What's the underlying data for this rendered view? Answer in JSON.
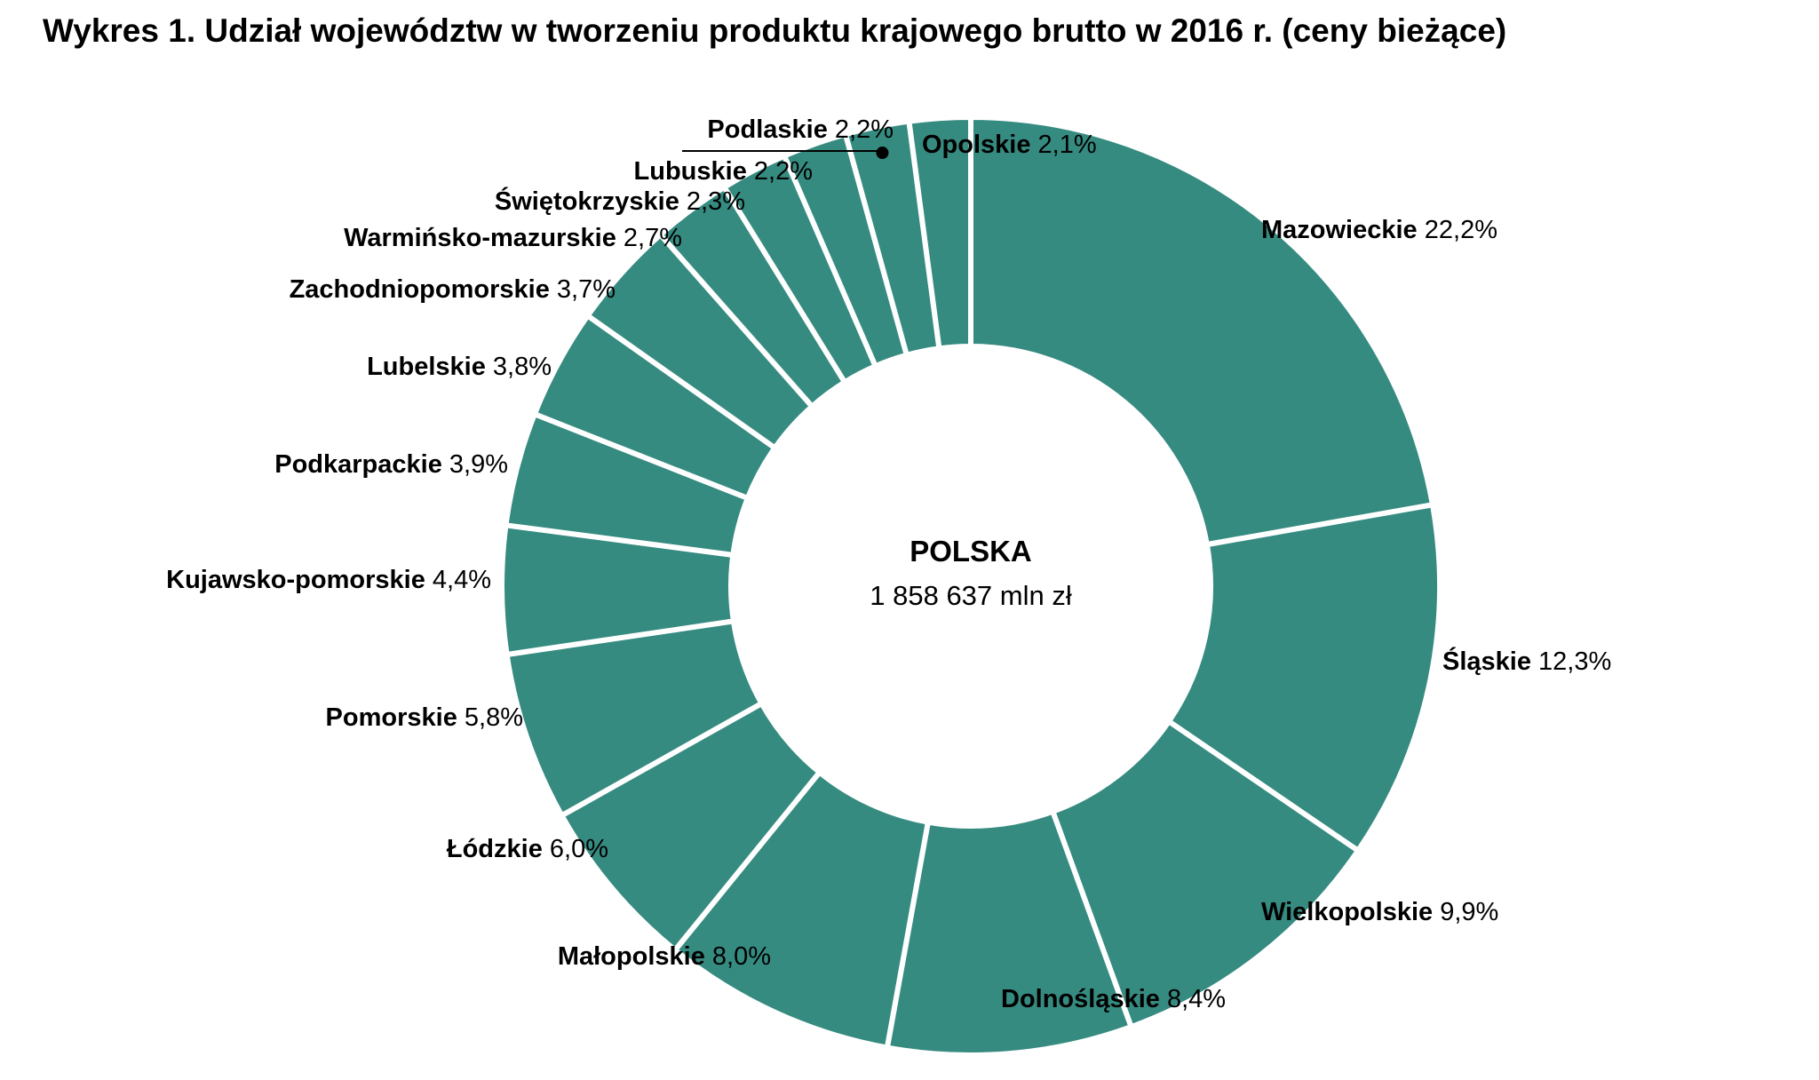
{
  "chart_data": {
    "type": "pie",
    "variant": "donut",
    "title": "Wykres 1. Udział województw w tworzeniu produktu krajowego brutto w 2016 r. (ceny bieżące)",
    "center_title": "POLSKA",
    "center_value": "1 858 637 mln zł",
    "unit": "%",
    "slice_color": "#368b81",
    "start": "top, clockwise",
    "slices": [
      {
        "name": "Mazowieckie",
        "value": 22.2,
        "label": "22,2%"
      },
      {
        "name": "Śląskie",
        "value": 12.3,
        "label": "12,3%"
      },
      {
        "name": "Wielkopolskie",
        "value": 9.9,
        "label": "9,9%"
      },
      {
        "name": "Dolnośląskie",
        "value": 8.4,
        "label": "8,4%"
      },
      {
        "name": "Małopolskie",
        "value": 8.0,
        "label": "8,0%"
      },
      {
        "name": "Łódzkie",
        "value": 6.0,
        "label": "6,0%"
      },
      {
        "name": "Pomorskie",
        "value": 5.8,
        "label": "5,8%"
      },
      {
        "name": "Kujawsko-pomorskie",
        "value": 4.4,
        "label": "4,4%"
      },
      {
        "name": "Podkarpackie",
        "value": 3.9,
        "label": "3,9%"
      },
      {
        "name": "Lubelskie",
        "value": 3.8,
        "label": "3,8%"
      },
      {
        "name": "Zachodniopomorskie",
        "value": 3.7,
        "label": "3,7%"
      },
      {
        "name": "Warmińsko-mazurskie",
        "value": 2.7,
        "label": "2,7%"
      },
      {
        "name": "Świętokrzyskie",
        "value": 2.3,
        "label": "2,3%"
      },
      {
        "name": "Lubuskie",
        "value": 2.2,
        "label": "2,2%"
      },
      {
        "name": "Podlaskie",
        "value": 2.2,
        "label": "2,2%"
      },
      {
        "name": "Opolskie",
        "value": 2.1,
        "label": "2,1%"
      }
    ]
  }
}
